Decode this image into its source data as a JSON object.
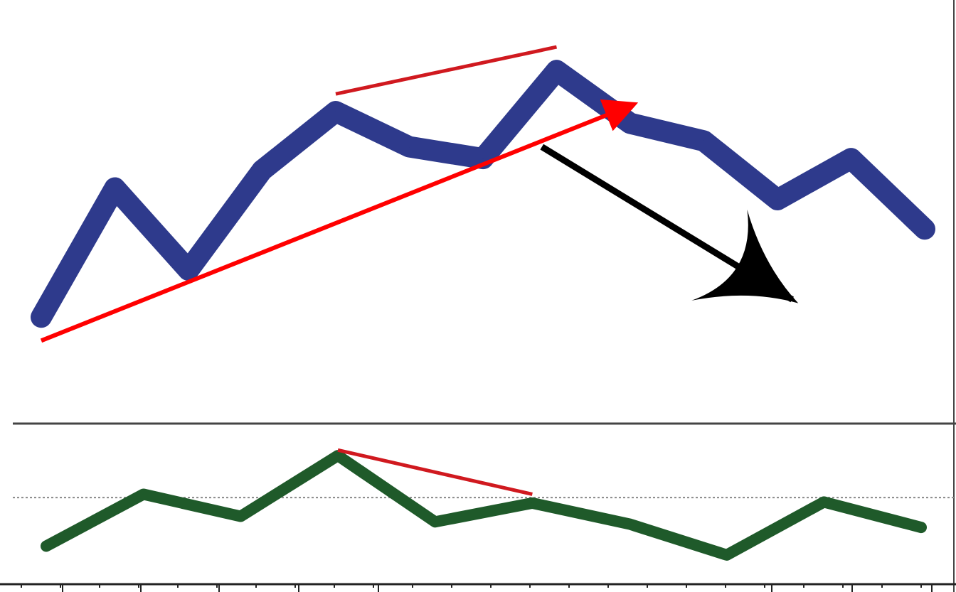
{
  "chart_data": [
    {
      "type": "line",
      "panel": "price",
      "series": [
        {
          "color": "#2e3a8c",
          "values": [
            58,
            80,
            66,
            83,
            93,
            87,
            85,
            100,
            91,
            88,
            78,
            85,
            73
          ]
        }
      ],
      "annotations": [
        {
          "type": "line",
          "color": "#d0191f",
          "from": [
            4,
            96
          ],
          "to": [
            7,
            104
          ]
        },
        {
          "type": "arrow",
          "color": "#ff0000",
          "from": [
            0,
            54
          ],
          "to": [
            8,
            94
          ]
        },
        {
          "type": "arrow",
          "color": "#000000",
          "from": [
            6.8,
            87
          ],
          "to": [
            10.2,
            61
          ]
        }
      ],
      "ylim": [
        40,
        112
      ],
      "grid": false
    },
    {
      "type": "line",
      "panel": "oscillator",
      "series": [
        {
          "color": "#1f5a2a",
          "values": [
            18,
            65,
            45,
            100,
            40,
            57,
            38,
            10,
            58,
            35
          ]
        }
      ],
      "annotations": [
        {
          "type": "line",
          "color": "#d0191f",
          "from": [
            3,
            105
          ],
          "to": [
            5,
            65
          ]
        },
        {
          "type": "hline",
          "style": "dotted",
          "value": 62
        }
      ],
      "ylim": [
        -10,
        120
      ],
      "grid": false
    }
  ],
  "colors": {
    "divider": "#444444",
    "axis": "#222222",
    "midline": "#888888"
  }
}
